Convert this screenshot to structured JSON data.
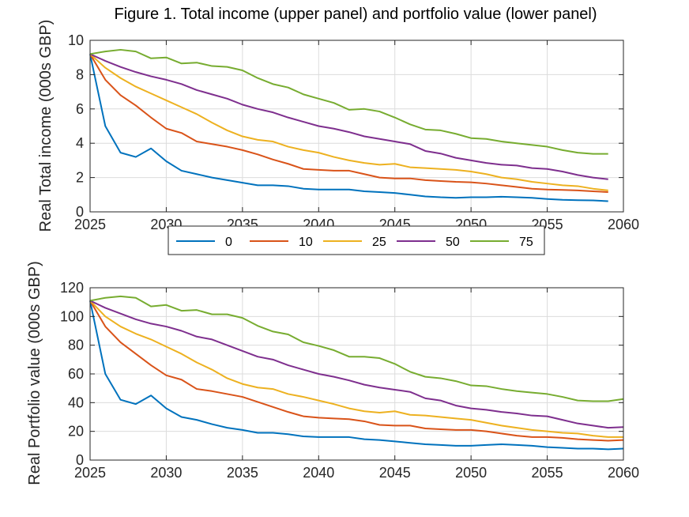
{
  "figure_title": "Figure 1. Total income (upper panel) and portfolio value (lower panel)",
  "legend": {
    "entries": [
      "0",
      "10",
      "25",
      "50",
      "75"
    ]
  },
  "colors": [
    "#0072BD",
    "#D95319",
    "#EDB120",
    "#7E2F8E",
    "#77AC30"
  ],
  "chart_data": [
    {
      "type": "line",
      "panel": "upper",
      "title": "",
      "xlabel": "",
      "ylabel": "Real Total income (000s GBP)",
      "xlim": [
        2025,
        2060
      ],
      "ylim": [
        0,
        10
      ],
      "xticks": [
        2025,
        2030,
        2035,
        2040,
        2045,
        2050,
        2055,
        2060
      ],
      "yticks": [
        0,
        2,
        4,
        6,
        8,
        10
      ],
      "grid": true,
      "x": [
        2025,
        2026,
        2027,
        2028,
        2029,
        2030,
        2031,
        2032,
        2033,
        2034,
        2035,
        2036,
        2037,
        2038,
        2039,
        2040,
        2041,
        2042,
        2043,
        2044,
        2045,
        2046,
        2047,
        2048,
        2049,
        2050,
        2051,
        2052,
        2053,
        2054,
        2055,
        2056,
        2057,
        2058,
        2059
      ],
      "series": [
        {
          "name": "0",
          "values": [
            9.2,
            5.0,
            3.45,
            3.2,
            3.7,
            2.95,
            2.4,
            2.2,
            2.0,
            1.85,
            1.7,
            1.55,
            1.55,
            1.5,
            1.35,
            1.3,
            1.3,
            1.3,
            1.2,
            1.15,
            1.1,
            1.0,
            0.9,
            0.85,
            0.82,
            0.85,
            0.85,
            0.88,
            0.85,
            0.82,
            0.75,
            0.7,
            0.68,
            0.67,
            0.62
          ]
        },
        {
          "name": "10",
          "values": [
            9.2,
            7.7,
            6.8,
            6.2,
            5.5,
            4.85,
            4.6,
            4.1,
            3.95,
            3.8,
            3.6,
            3.35,
            3.05,
            2.8,
            2.5,
            2.45,
            2.4,
            2.4,
            2.2,
            2.0,
            1.95,
            1.95,
            1.85,
            1.8,
            1.75,
            1.72,
            1.65,
            1.55,
            1.45,
            1.35,
            1.3,
            1.28,
            1.25,
            1.2,
            1.15
          ]
        },
        {
          "name": "25",
          "values": [
            9.2,
            8.4,
            7.8,
            7.3,
            6.9,
            6.5,
            6.1,
            5.7,
            5.2,
            4.75,
            4.4,
            4.2,
            4.1,
            3.8,
            3.6,
            3.45,
            3.2,
            3.0,
            2.85,
            2.75,
            2.8,
            2.6,
            2.55,
            2.5,
            2.45,
            2.35,
            2.2,
            2.0,
            1.9,
            1.75,
            1.65,
            1.55,
            1.5,
            1.35,
            1.25
          ]
        },
        {
          "name": "50",
          "values": [
            9.2,
            8.8,
            8.45,
            8.15,
            7.9,
            7.7,
            7.45,
            7.1,
            6.85,
            6.6,
            6.25,
            6.0,
            5.8,
            5.5,
            5.25,
            5.0,
            4.85,
            4.65,
            4.4,
            4.25,
            4.1,
            3.95,
            3.55,
            3.4,
            3.15,
            3.0,
            2.85,
            2.75,
            2.7,
            2.55,
            2.5,
            2.35,
            2.15,
            2.0,
            1.9
          ]
        },
        {
          "name": "75",
          "values": [
            9.2,
            9.35,
            9.45,
            9.35,
            8.95,
            9.0,
            8.65,
            8.7,
            8.5,
            8.45,
            8.25,
            7.8,
            7.45,
            7.25,
            6.85,
            6.6,
            6.35,
            5.95,
            6.0,
            5.85,
            5.5,
            5.1,
            4.8,
            4.75,
            4.55,
            4.3,
            4.25,
            4.1,
            4.0,
            3.9,
            3.8,
            3.6,
            3.45,
            3.38,
            3.38
          ]
        }
      ]
    },
    {
      "type": "line",
      "panel": "lower",
      "title": "",
      "xlabel": "",
      "ylabel": "Real Portfolio value (000s GBP)",
      "xlim": [
        2025,
        2060
      ],
      "ylim": [
        0,
        120
      ],
      "xticks": [
        2025,
        2030,
        2035,
        2040,
        2045,
        2050,
        2055,
        2060
      ],
      "yticks": [
        0,
        20,
        40,
        60,
        80,
        100,
        120
      ],
      "grid": true,
      "x": [
        2025,
        2026,
        2027,
        2028,
        2029,
        2030,
        2031,
        2032,
        2033,
        2034,
        2035,
        2036,
        2037,
        2038,
        2039,
        2040,
        2041,
        2042,
        2043,
        2044,
        2045,
        2046,
        2047,
        2048,
        2049,
        2050,
        2051,
        2052,
        2053,
        2054,
        2055,
        2056,
        2057,
        2058,
        2059,
        2060
      ],
      "series": [
        {
          "name": "0",
          "values": [
            111,
            60,
            42,
            39,
            45,
            36,
            30,
            28,
            25,
            22.5,
            21,
            19,
            19,
            18,
            16.5,
            16,
            16,
            16,
            14.5,
            14,
            13,
            12,
            11,
            10.5,
            10,
            10,
            10.5,
            11,
            10.5,
            10,
            9,
            8.5,
            8,
            8,
            7.5,
            8
          ]
        },
        {
          "name": "10",
          "values": [
            111,
            93,
            82,
            74,
            66,
            59,
            56,
            49.5,
            48,
            46,
            44,
            40.5,
            37,
            33.5,
            30.5,
            29.5,
            29,
            28.5,
            27,
            24.5,
            24,
            24,
            22,
            21.5,
            21,
            21,
            20,
            18.5,
            17,
            16,
            16,
            15.5,
            14.5,
            14,
            13.5,
            14
          ]
        },
        {
          "name": "25",
          "values": [
            111,
            100,
            93,
            88,
            84,
            79,
            74,
            68,
            63,
            57,
            53,
            50.5,
            49.5,
            46,
            44,
            41.5,
            39,
            36,
            34,
            33,
            34,
            31.5,
            31,
            30,
            29,
            28,
            26,
            24,
            22.5,
            21,
            20,
            19,
            18.5,
            17,
            16,
            16
          ]
        },
        {
          "name": "50",
          "values": [
            111,
            106,
            102,
            98,
            95,
            93,
            90,
            86,
            84,
            80,
            76,
            72,
            70,
            66,
            63,
            60,
            58,
            55.5,
            52.5,
            50.5,
            49,
            47.5,
            43,
            41.5,
            38,
            36,
            35,
            33.5,
            32.5,
            31,
            30.5,
            28,
            25.5,
            24,
            22.5,
            23
          ]
        },
        {
          "name": "75",
          "values": [
            111,
            113,
            114,
            113,
            107,
            108,
            104,
            104.5,
            101.5,
            101.5,
            99,
            93.5,
            89.5,
            87.5,
            82,
            79.5,
            76.5,
            72,
            72,
            71,
            67,
            61.5,
            58,
            57,
            55,
            52,
            51.5,
            49.5,
            48,
            47,
            46,
            44,
            41.5,
            41,
            41,
            42.5
          ]
        }
      ]
    }
  ]
}
